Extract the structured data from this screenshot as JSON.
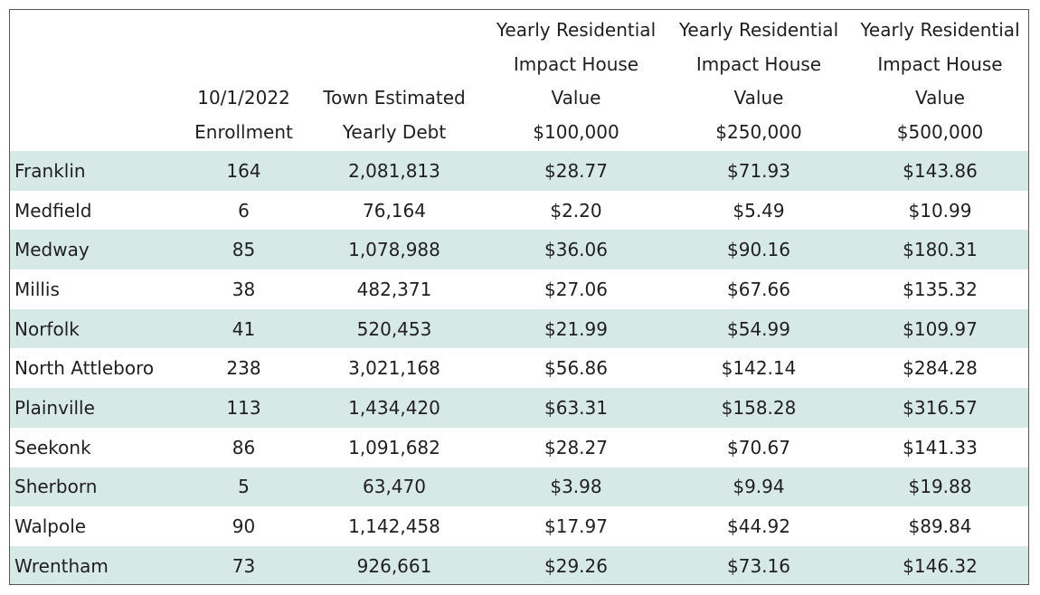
{
  "table": {
    "headers": [
      {
        "lines": [
          ""
        ]
      },
      {
        "lines": [
          "10/1/2022",
          "Enrollment"
        ]
      },
      {
        "lines": [
          "Town Estimated",
          "Yearly Debt"
        ]
      },
      {
        "lines": [
          "Yearly Residential",
          "Impact House",
          "Value",
          "$100,000"
        ]
      },
      {
        "lines": [
          "Yearly Residential",
          "Impact House",
          "Value",
          "$250,000"
        ]
      },
      {
        "lines": [
          "Yearly Residential",
          "Impact House",
          "Value",
          "$500,000"
        ]
      }
    ],
    "rows": [
      [
        "Franklin",
        "164",
        "2,081,813",
        "$28.77",
        "$71.93",
        "$143.86"
      ],
      [
        "Medfield",
        "6",
        "76,164",
        "$2.20",
        "$5.49",
        "$10.99"
      ],
      [
        "Medway",
        "85",
        "1,078,988",
        "$36.06",
        "$90.16",
        "$180.31"
      ],
      [
        "Millis",
        "38",
        "482,371",
        "$27.06",
        "$67.66",
        "$135.32"
      ],
      [
        "Norfolk",
        "41",
        "520,453",
        "$21.99",
        "$54.99",
        "$109.97"
      ],
      [
        "North Attleboro",
        "238",
        "3,021,168",
        "$56.86",
        "$142.14",
        "$284.28"
      ],
      [
        "Plainville",
        "113",
        "1,434,420",
        "$63.31",
        "$158.28",
        "$316.57"
      ],
      [
        "Seekonk",
        "86",
        "1,091,682",
        "$28.27",
        "$70.67",
        "$141.33"
      ],
      [
        "Sherborn",
        "5",
        "63,470",
        "$3.98",
        "$9.94",
        "$19.88"
      ],
      [
        "Walpole",
        "90",
        "1,142,458",
        "$17.97",
        "$44.92",
        "$89.84"
      ],
      [
        "Wrentham",
        "73",
        "926,661",
        "$29.26",
        "$73.16",
        "$146.32"
      ]
    ]
  },
  "colors": {
    "band": "#d7e9e7",
    "border": "#555555",
    "text": "#1f1f1f"
  }
}
